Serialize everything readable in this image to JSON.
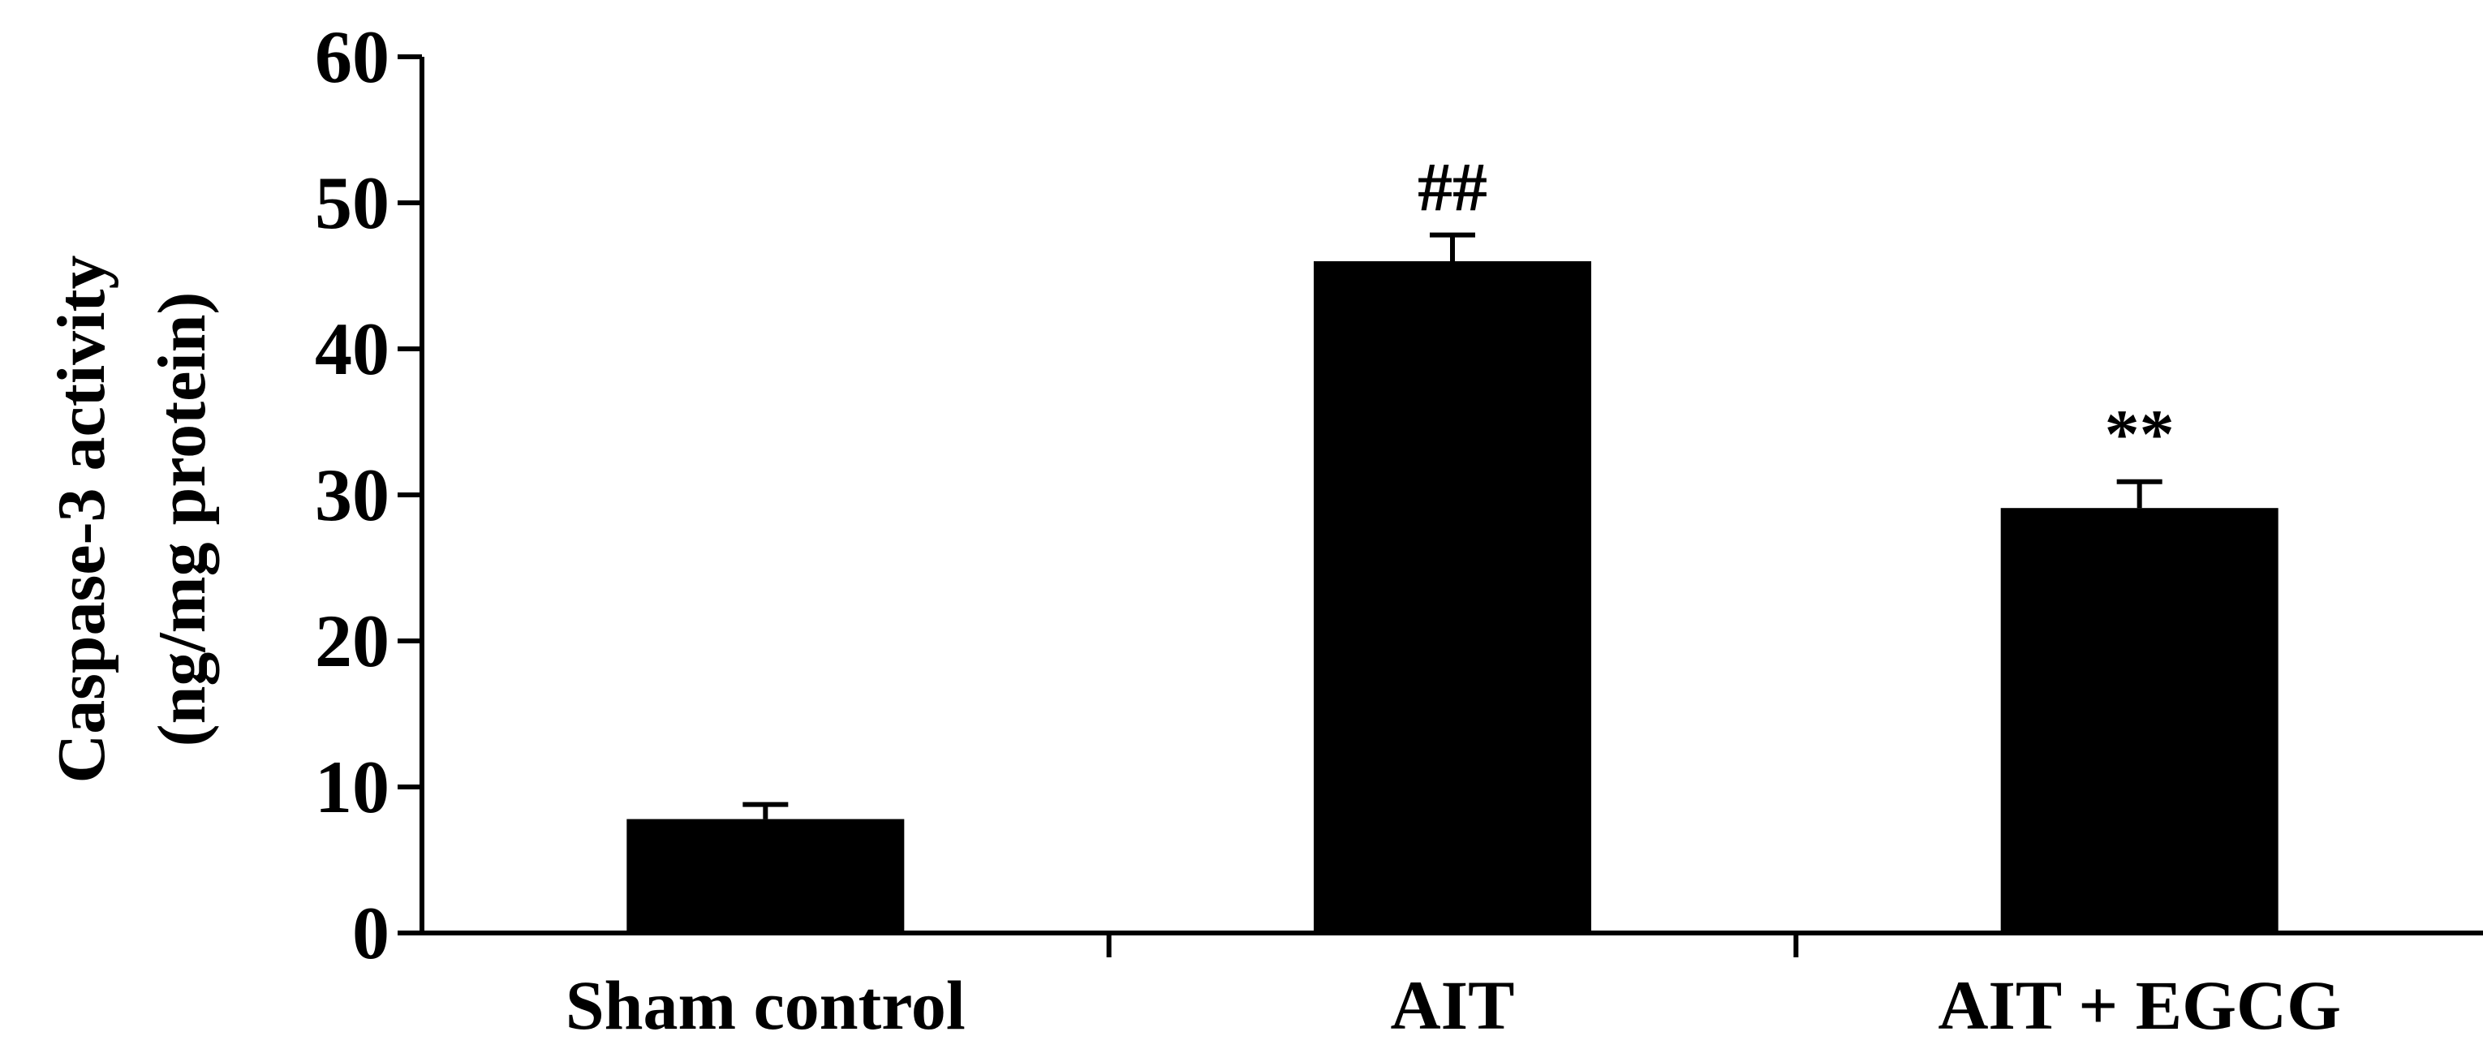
{
  "chart_data": {
    "type": "bar",
    "categories": [
      "Sham control",
      "AIT",
      "AIT + EGCG"
    ],
    "series": [
      {
        "values": [
          7.8,
          46.0,
          29.1
        ],
        "errors": [
          1.0,
          1.8,
          1.8
        ]
      }
    ],
    "annotations": [
      "",
      "##",
      "**"
    ],
    "ylabel_lines": [
      "Caspase-3 activity",
      "(ng/mg protein)"
    ],
    "xlabel": "",
    "ylim": [
      0,
      60
    ],
    "yticks": [
      0,
      10,
      20,
      30,
      40,
      50,
      60
    ],
    "grid": false,
    "legend": "none",
    "bar_color": "#000000",
    "axis_color": "#000000"
  }
}
